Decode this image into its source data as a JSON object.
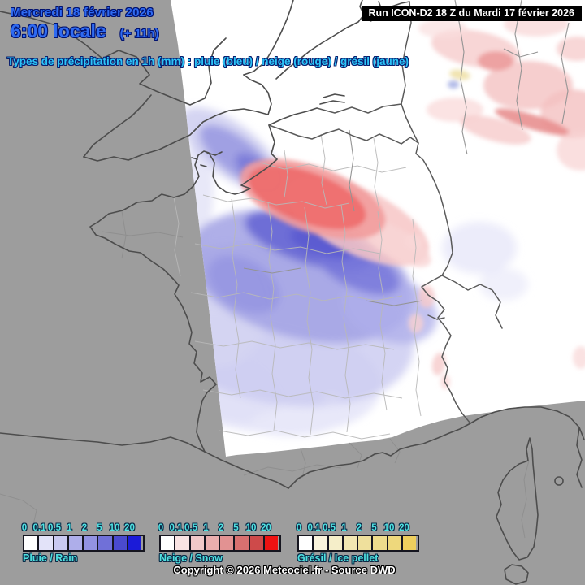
{
  "header": {
    "date": "Mercredi 18 février 2026",
    "time": "6:00 locale",
    "offset": "(+ 11h)",
    "run_banner": "Run ICON-D2 18 Z du Mardi 17 février 2026",
    "subtitle": "Types de précipitation en 1h (mm) : pluie (bleu) / neige (rouge) / grésil (jaune)",
    "date_color": "#2f6bf2",
    "subtitle_color": "#2cc4f8"
  },
  "legend": {
    "ticks": [
      "0",
      "0.1",
      "0.5",
      "1",
      "2",
      "5",
      "10",
      "20"
    ],
    "scales": [
      {
        "id": "rain",
        "label": "Pluie / Rain",
        "colors": [
          "#ffffff",
          "#e3e3f9",
          "#c9c9f1",
          "#aeaeea",
          "#9292e2",
          "#7070d8",
          "#4a4ace",
          "#1b1bd8"
        ]
      },
      {
        "id": "snow",
        "label": "Neige / Snow",
        "colors": [
          "#ffffff",
          "#f9e3e3",
          "#f1c9c9",
          "#eaaeae",
          "#e29292",
          "#d87070",
          "#ce4a4a",
          "#ee1212"
        ]
      },
      {
        "id": "gresil",
        "label": "Grésil / Ice pellet",
        "colors": [
          "#ffffff",
          "#f9f3dc",
          "#f5eec9",
          "#f2e7b2",
          "#efe09c",
          "#eedc8c",
          "#eed87c",
          "#eecf5e"
        ]
      }
    ],
    "tick_color": "#4fe2e2"
  },
  "footer": {
    "copyright": "Copyright © 2026 Meteociel.fr - Source DWD"
  },
  "map": {
    "model": "ICON-D2",
    "colors": {
      "outside_domain": "#9d9d9d",
      "domain_background": "#ffffff",
      "coastline": "#4d4d4d",
      "department_line": "#b8b8b8"
    },
    "precipitation": [
      {
        "type": "pluie / rain",
        "palette": "blue-violet",
        "location": "wide SW–NE band from Normandie across central France"
      },
      {
        "type": "neige / snow",
        "palette": "red-pink",
        "location": "band Normandie–Picardie, scattered patches Belgium/Germany and Alps"
      },
      {
        "type": "grésil / ice pellet",
        "palette": "yellow",
        "location": "tiny patch near Belgium–Germany border"
      }
    ]
  }
}
